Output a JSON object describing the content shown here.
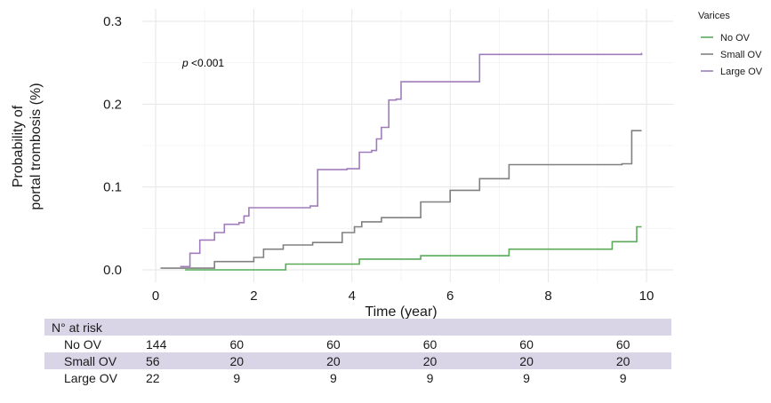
{
  "chart_data": {
    "type": "line",
    "step": true,
    "xlabel": "Time (year)",
    "ylabel_lines": [
      "Probability of",
      "portal trombosis (%)"
    ],
    "xlim": [
      0,
      10
    ],
    "ylim": [
      0,
      0.3
    ],
    "x_ticks": [
      0,
      2,
      4,
      6,
      8,
      10
    ],
    "x_tick_labels": [
      "0",
      "2",
      "4",
      "6",
      "8",
      "10"
    ],
    "y_ticks": [
      0,
      0.1,
      0.2,
      0.3
    ],
    "y_tick_labels": [
      "0.0",
      "0.1",
      "0.2",
      "0.3"
    ],
    "grid": true,
    "annotation": {
      "italic": "p",
      "rest": " <0.001"
    },
    "legend": {
      "title": "Varices",
      "position": "top-right"
    },
    "series": [
      {
        "name": "No OV",
        "color": "#5aaa5a",
        "x": [
          0.6,
          2.65,
          4.15,
          5.4,
          7.2,
          9.3,
          9.8,
          9.9
        ],
        "y": [
          0.0,
          0.007,
          0.013,
          0.017,
          0.025,
          0.034,
          0.052,
          0.052
        ]
      },
      {
        "name": "Small OV",
        "color": "#808080",
        "x": [
          0.1,
          1.2,
          2.0,
          2.2,
          2.6,
          3.2,
          3.8,
          4.05,
          4.2,
          4.6,
          5.4,
          6.0,
          6.6,
          7.2,
          9.5,
          9.7,
          9.9
        ],
        "y": [
          0.002,
          0.01,
          0.015,
          0.025,
          0.03,
          0.033,
          0.045,
          0.052,
          0.058,
          0.063,
          0.082,
          0.096,
          0.11,
          0.127,
          0.128,
          0.168,
          0.168
        ]
      },
      {
        "name": "Large OV",
        "color": "#a07cbc",
        "x": [
          0.5,
          0.7,
          0.9,
          1.2,
          1.4,
          1.7,
          1.8,
          1.9,
          3.15,
          3.3,
          3.9,
          4.15,
          4.4,
          4.5,
          4.6,
          4.75,
          4.9,
          5.0,
          6.6,
          9.9
        ],
        "y": [
          0.004,
          0.02,
          0.036,
          0.045,
          0.055,
          0.057,
          0.065,
          0.075,
          0.077,
          0.121,
          0.122,
          0.142,
          0.144,
          0.158,
          0.172,
          0.205,
          0.206,
          0.227,
          0.26,
          0.262
        ]
      }
    ]
  },
  "risk_table": {
    "title": "N° at risk",
    "rows": [
      {
        "label": "No OV",
        "values": [
          "144",
          "60",
          "60",
          "60",
          "60",
          "60"
        ]
      },
      {
        "label": "Small OV",
        "values": [
          "56",
          "20",
          "20",
          "20",
          "20",
          "20"
        ]
      },
      {
        "label": "Large OV",
        "values": [
          "22",
          "9",
          "9",
          "9",
          "9",
          "9"
        ]
      }
    ]
  }
}
